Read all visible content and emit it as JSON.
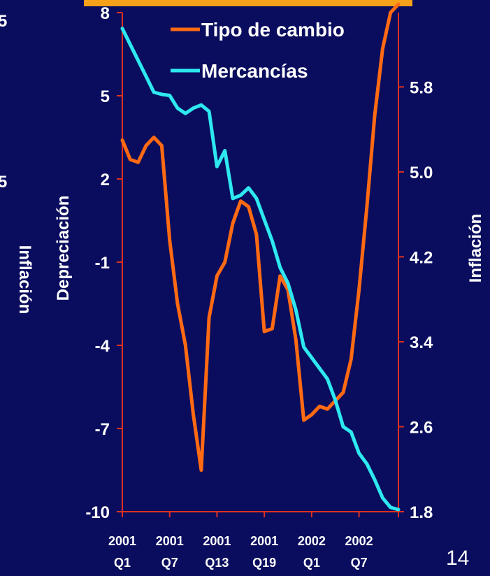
{
  "slide_number": "14",
  "left_edge_fragments": {
    "top_digit": "5",
    "mid_digit": "5",
    "axis_label": "Inflación"
  },
  "chart_data": {
    "type": "line",
    "categories": [
      "2001 Q1",
      "",
      "",
      "",
      "",
      "",
      "2001 Q7",
      "",
      "",
      "",
      "",
      "",
      "2001 Q13",
      "",
      "",
      "",
      "",
      "",
      "2001 Q19",
      "",
      "",
      "",
      "",
      "",
      "2002 Q1",
      "",
      "",
      "",
      "",
      "",
      "2002 Q7",
      "",
      "",
      "",
      "",
      ""
    ],
    "x_tick_labels": [
      {
        "line1": "2001",
        "line2": "Q1"
      },
      {
        "line1": "2001",
        "line2": "Q7"
      },
      {
        "line1": "2001",
        "line2": "Q13"
      },
      {
        "line1": "2001",
        "line2": "Q19"
      },
      {
        "line1": "2002",
        "line2": "Q1"
      },
      {
        "line1": "2002",
        "line2": "Q7"
      }
    ],
    "ylabel_left": "Depreciación",
    "ylabel_right": "Inflación",
    "ylim_left": [
      -10,
      8
    ],
    "ylim_right": [
      1.8,
      6.5
    ],
    "yticks_left": [
      "8",
      "5",
      "2",
      "-1",
      "-4",
      "-7",
      "-10"
    ],
    "yticks_right": [
      "5.8",
      "5.0",
      "4.2",
      "3.4",
      "2.6",
      "1.8"
    ],
    "grid": false,
    "legend_position": "top-right",
    "series": [
      {
        "name": "Tipo de cambio",
        "axis": "left",
        "color": "#ff6a13",
        "values": [
          3.4,
          2.7,
          2.6,
          3.2,
          3.5,
          3.2,
          -0.2,
          -2.5,
          -4.0,
          -6.5,
          -8.5,
          -3.0,
          -1.5,
          -1.0,
          0.4,
          1.2,
          1.0,
          0.0,
          -3.5,
          -3.4,
          -1.5,
          -2.0,
          -3.8,
          -6.7,
          -6.5,
          -6.2,
          -6.3,
          -6.0,
          -5.7,
          -4.5,
          -2.0,
          1.0,
          4.3,
          6.7,
          8.0,
          8.3
        ]
      },
      {
        "name": "Mercancías",
        "axis": "right",
        "color": "#2ee8f0",
        "values": [
          6.35,
          6.2,
          6.05,
          5.9,
          5.75,
          5.73,
          5.72,
          5.6,
          5.55,
          5.6,
          5.63,
          5.57,
          5.05,
          5.2,
          4.75,
          4.78,
          4.85,
          4.75,
          4.55,
          4.35,
          4.1,
          3.95,
          3.7,
          3.35,
          3.25,
          3.15,
          3.05,
          2.85,
          2.6,
          2.55,
          2.35,
          2.25,
          2.1,
          1.93,
          1.84,
          1.82
        ]
      }
    ]
  }
}
